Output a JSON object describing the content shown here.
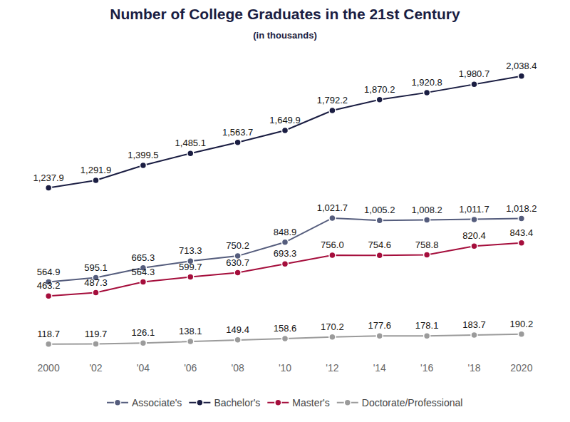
{
  "chart_data": {
    "type": "line",
    "title": "Number of College Graduates in the 21st Century",
    "subtitle": "(in thousands)",
    "categories": [
      "2000",
      "'02",
      "'04",
      "'06",
      "'08",
      "'10",
      "'12",
      "'14",
      "'16",
      "'18",
      "2020"
    ],
    "series": [
      {
        "name": "Associate's",
        "color": "#555d7d",
        "marker": "circle",
        "line_style": "solid",
        "values": [
          564.9,
          595.1,
          665.3,
          713.3,
          750.2,
          848.9,
          1021.7,
          1005.2,
          1008.2,
          1011.7,
          1018.2
        ],
        "value_labels": [
          "564.9",
          "595.1",
          "665.3",
          "713.3",
          "750.2",
          "848.9",
          "1,021.7",
          "1,005.2",
          "1,008.2",
          "1,011.7",
          "1,018.2"
        ]
      },
      {
        "name": "Bachelor's",
        "color": "#1a1d42",
        "marker": "circle",
        "line_style": "solid",
        "values": [
          1237.9,
          1291.9,
          1399.5,
          1485.1,
          1563.7,
          1649.9,
          1792.2,
          1870.2,
          1920.8,
          1980.7,
          2038.4
        ],
        "value_labels": [
          "1,237.9",
          "1,291.9",
          "1,399.5",
          "1,485.1",
          "1,563.7",
          "1,649.9",
          "1,792.2",
          "1,870.2",
          "1,920.8",
          "1,980.7",
          "2,038.4"
        ]
      },
      {
        "name": "Master's",
        "color": "#a50e3c",
        "marker": "circle",
        "line_style": "solid",
        "values": [
          463.2,
          487.3,
          564.3,
          599.7,
          630.7,
          693.3,
          756.0,
          754.6,
          758.8,
          820.4,
          843.4
        ],
        "value_labels": [
          "463.2",
          "487.3",
          "564.3",
          "599.7",
          "630.7",
          "693.3",
          "756.0",
          "754.6",
          "758.8",
          "820.4",
          "843.4"
        ]
      },
      {
        "name": "Doctorate/Professional",
        "color": "#9b9b9b",
        "marker": "circle",
        "line_style": "solid",
        "values": [
          118.7,
          119.7,
          126.1,
          138.1,
          149.4,
          158.6,
          170.2,
          177.6,
          178.1,
          183.7,
          190.2
        ],
        "value_labels": [
          "118.7",
          "119.7",
          "126.1",
          "138.1",
          "149.4",
          "158.6",
          "170.2",
          "177.6",
          "178.1",
          "183.7",
          "190.2"
        ]
      }
    ],
    "ylim": [
      0,
      2150
    ],
    "grid": false,
    "legend": "bottom",
    "data_labels": true,
    "tick_labels": "x"
  }
}
